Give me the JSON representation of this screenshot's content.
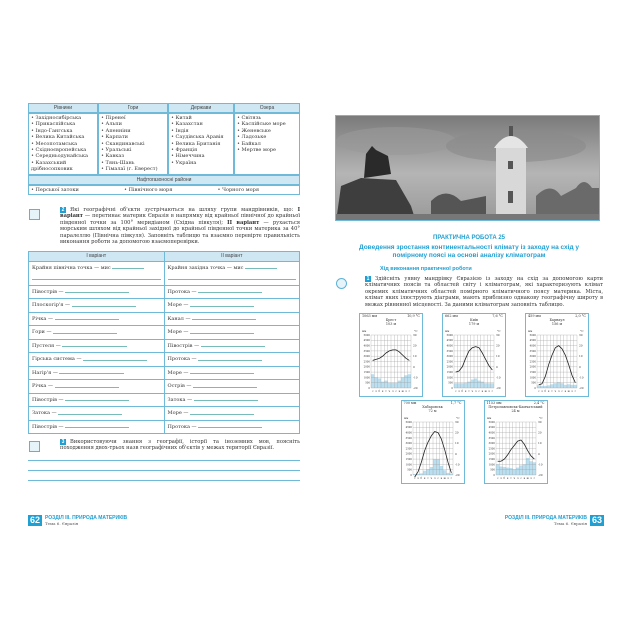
{
  "left_page": {
    "table1": {
      "headers": [
        "Рівнини",
        "Гори",
        "Держави",
        "Озера"
      ],
      "columns": [
        [
          "Західносибірська",
          "Прикаспійська",
          "Індо-Гангська",
          "Велика Китайська",
          "Месопотамська",
          "Східноєвропейська",
          "Середньодунайська",
          "Казахський дрібносопковик"
        ],
        [
          "Піренеї",
          "Альпи",
          "Апенніни",
          "Карпати",
          "Скандинавські",
          "Уральські",
          "Кавказ",
          "Тянь-Шань",
          "Гімалаї (г. Еверест)"
        ],
        [
          "Китай",
          "Казахстан",
          "Індія",
          "Саудівська Аравія",
          "Велика Британія",
          "Франція",
          "Німеччина",
          "Україна"
        ],
        [
          "Світязь",
          "Каспійське море",
          "Женевське",
          "Ладозьке",
          "Байкал",
          "Мертве море"
        ]
      ],
      "oil_header": "Нафтогазоносні райони",
      "oil": [
        "Перської затоки",
        "Північного моря",
        "Чорного моря"
      ]
    },
    "task2": {
      "number": "2",
      "text_a": "Які географічні об'єкти зустрічаються на шляху групи мандрівників, що: ",
      "v1": "І варіант",
      "text_b": " — перетинає материк Євразія в напрямку від крайньої північної до крайньої південної точки за 100° меридіаном (Східна півкуля); ",
      "v2": "ІІ варіант",
      "text_c": " — рухається морським шляхом від крайньої західної до крайньої південної точки материка за 40° паралеллю (Північна півкуля). Заповніть таблицю та взаємно перевірте правильність виконання роботи за допомогою взаємоперевірки."
    },
    "table2": {
      "headers": [
        "І варіант",
        "ІІ варіант"
      ],
      "rows": [
        [
          "Крайня північна точка — мис",
          "Крайня західна точка — мис"
        ],
        [
          "Півострів —",
          "Протока —"
        ],
        [
          "Плоскогір'я —",
          "Море —"
        ],
        [
          "Річка —",
          "Канал —"
        ],
        [
          "Гори —",
          "Море —"
        ],
        [
          "Пустеля —",
          "Півострів —"
        ],
        [
          "Гірська система —",
          "Протока —"
        ],
        [
          "Нагір'я —",
          "Море —"
        ],
        [
          "Річка —",
          "Острів —"
        ],
        [
          "Півострів —",
          "Затока —"
        ],
        [
          "Затока —",
          "Море —"
        ],
        [
          "Півострів —",
          "Протока —"
        ]
      ]
    },
    "task3": {
      "number": "3",
      "text": "Використовуючи знання з географії, історії та іноземних мов, поясніть походження двох-трьох назв географічних об'єктів у межах території Євразії."
    },
    "footer": {
      "page": "62",
      "section": "РОЗДІЛ ІІІ. ПРИРОДА МАТЕРИКІВ",
      "topic": "Тема 6. Євразія"
    }
  },
  "right_page": {
    "practical_title": "ПРАКТИЧНА РОБОТА 25",
    "heading": "Доведення зростання континентальності клімату із заходу на схід у помірному поясі на основі аналізу кліматограм",
    "progress_title": "Хід виконання практичної роботи",
    "task1": {
      "number": "1",
      "text": "Здійсніть уявну мандрівку Євразією із заходу на схід за допомогою карти кліматичних поясів та областей світу і кліматограм, які характеризують клімат окремих кліматичних областей помірного кліматичного поясу материка. Міста, клімат яких ілюструють діаграми, мають приблизно однакову географічну широту в межах рівнинної місцевості. За даними кліматограм заповніть таблицю."
    },
    "footer": {
      "page": "63",
      "section": "РОЗДІЛ ІІІ. ПРИРОДА МАТЕРИКІВ",
      "topic": "Тема 6. Євразія"
    }
  },
  "climatograms": {
    "months": [
      "с",
      "л",
      "б",
      "к",
      "т",
      "ч",
      "л",
      "с",
      "в",
      "ж",
      "л",
      "г"
    ],
    "left_unit": "мм",
    "right_unit": "°С",
    "left_ticks": [
      0,
      500,
      1000,
      1500,
      2000,
      2500,
      3000,
      3500,
      4000,
      4500,
      5000
    ],
    "right_ticks": [
      -20,
      -10,
      0,
      10,
      20,
      30
    ],
    "bar_color": "#b9dff0",
    "stations": [
      {
        "precip_total": "1063 мм",
        "name": "Брест",
        "elevation": "103 м",
        "mean_temp": "10,9 °С",
        "temps": [
          6,
          7,
          8,
          10,
          13,
          15,
          16,
          16,
          14,
          11,
          8,
          6
        ],
        "precip": [
          1300,
          1000,
          900,
          600,
          700,
          500,
          500,
          500,
          700,
          1000,
          1200,
          1300
        ]
      },
      {
        "precip_total": "662 мм",
        "name": "Київ",
        "elevation": "179 м",
        "mean_temp": "7,6 °С",
        "temps": [
          -5,
          -4,
          0,
          8,
          15,
          18,
          19,
          18,
          13,
          7,
          1,
          -3
        ],
        "precip": [
          450,
          450,
          450,
          500,
          600,
          800,
          900,
          700,
          600,
          450,
          450,
          450
        ]
      },
      {
        "precip_total": "459 мм",
        "name": "Барнаул",
        "elevation": "156 м",
        "mean_temp": "2,0 °С",
        "temps": [
          -17,
          -16,
          -9,
          2,
          11,
          18,
          20,
          17,
          11,
          2,
          -8,
          -15
        ],
        "precip": [
          250,
          200,
          200,
          250,
          350,
          450,
          550,
          450,
          300,
          350,
          300,
          300
        ]
      },
      {
        "precip_total": "700 мм",
        "name": "Хабаровськ",
        "elevation": "72 м",
        "mean_temp": "1,7 °С",
        "temps": [
          -22,
          -17,
          -8,
          3,
          11,
          17,
          21,
          20,
          14,
          4,
          -8,
          -18
        ],
        "precip": [
          100,
          100,
          150,
          400,
          550,
          750,
          1500,
          1500,
          850,
          450,
          200,
          150
        ]
      },
      {
        "precip_total": "1153 мм",
        "name": "Петропавловськ-Камчатський",
        "elevation": "24 м",
        "mean_temp": "2,4 °С",
        "temps": [
          -7,
          -7,
          -5,
          -1,
          4,
          8,
          12,
          13,
          9,
          3,
          -2,
          -5
        ],
        "precip": [
          1000,
          800,
          750,
          700,
          650,
          550,
          700,
          900,
          1000,
          1600,
          1300,
          1200
        ]
      }
    ]
  }
}
